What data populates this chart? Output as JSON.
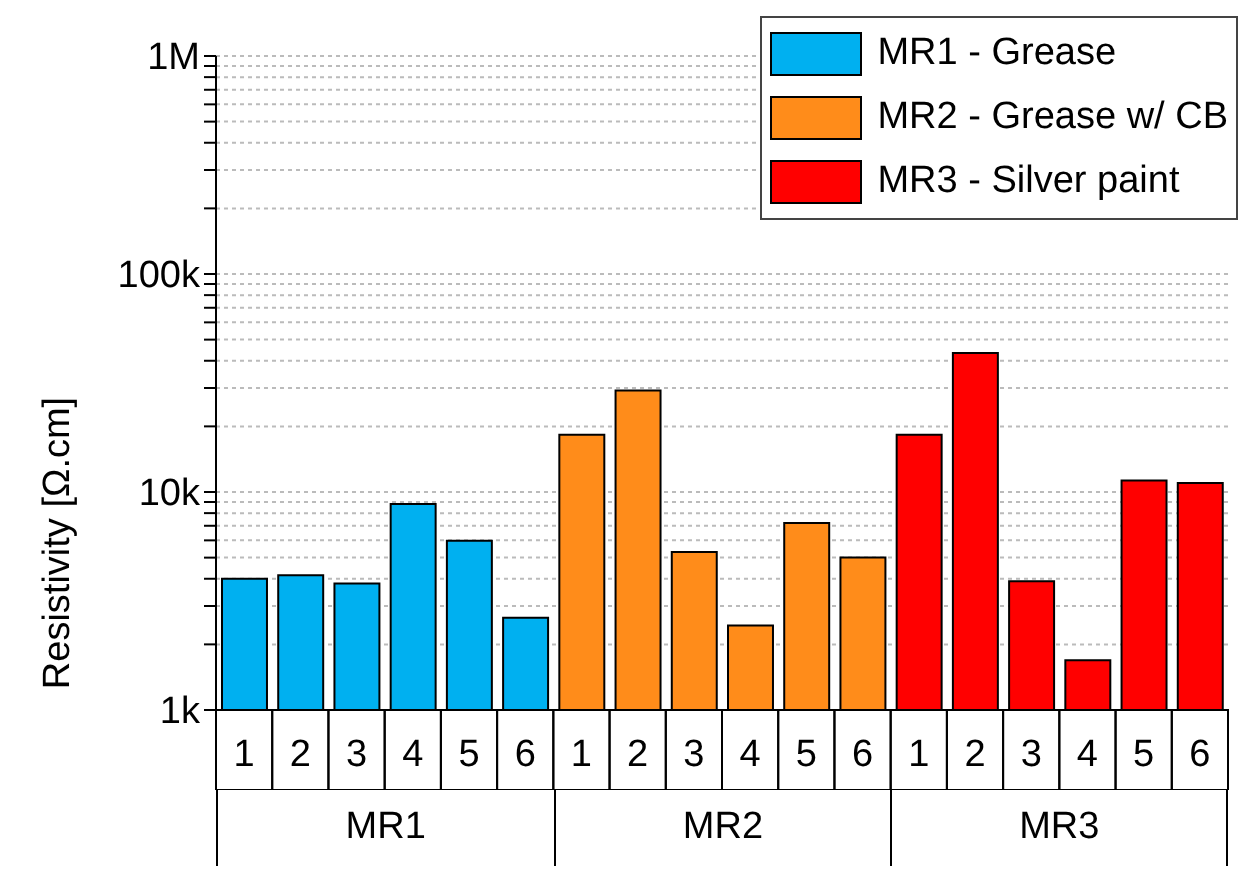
{
  "chart_data": {
    "type": "bar",
    "ylabel": "Resistivity [Ω.cm]",
    "categories": [
      "1",
      "2",
      "3",
      "4",
      "5",
      "6",
      "1",
      "2",
      "3",
      "4",
      "5",
      "6",
      "1",
      "2",
      "3",
      "4",
      "5",
      "6"
    ],
    "series": [
      {
        "name": "MR1 - Grease",
        "color": "#00b0f0",
        "values": [
          4000,
          4150,
          3800,
          8800,
          5970,
          2650,
          null,
          null,
          null,
          null,
          null,
          null,
          null,
          null,
          null,
          null,
          null,
          null
        ]
      },
      {
        "name": "MR2 - Grease w/ CB",
        "color": "#ff8c1a",
        "values": [
          null,
          null,
          null,
          null,
          null,
          null,
          18300,
          29200,
          5300,
          2440,
          7200,
          5000,
          null,
          null,
          null,
          null,
          null,
          null
        ]
      },
      {
        "name": "MR3 - Silver paint",
        "color": "#ff0000",
        "values": [
          null,
          null,
          null,
          null,
          null,
          null,
          null,
          null,
          null,
          null,
          null,
          null,
          18300,
          43400,
          3900,
          1690,
          11300,
          11000
        ]
      }
    ],
    "log": true,
    "ylim": [
      1000,
      1000000
    ],
    "yticks": [
      {
        "value": 1000,
        "label": "1k"
      },
      {
        "value": 2000,
        "label": null
      },
      {
        "value": 3000,
        "label": null
      },
      {
        "value": 4000,
        "label": null
      },
      {
        "value": 5000,
        "label": null
      },
      {
        "value": 6000,
        "label": null
      },
      {
        "value": 7000,
        "label": null
      },
      {
        "value": 8000,
        "label": null
      },
      {
        "value": 9000,
        "label": null
      },
      {
        "value": 10000,
        "label": "10k"
      },
      {
        "value": 20000,
        "label": null
      },
      {
        "value": 30000,
        "label": null
      },
      {
        "value": 40000,
        "label": null
      },
      {
        "value": 50000,
        "label": null
      },
      {
        "value": 60000,
        "label": null
      },
      {
        "value": 70000,
        "label": null
      },
      {
        "value": 80000,
        "label": null
      },
      {
        "value": 90000,
        "label": null
      },
      {
        "value": 100000,
        "label": "100k"
      },
      {
        "value": 200000,
        "label": null
      },
      {
        "value": 300000,
        "label": null
      },
      {
        "value": 400000,
        "label": null
      },
      {
        "value": 500000,
        "label": null
      },
      {
        "value": 600000,
        "label": null
      },
      {
        "value": 700000,
        "label": null
      },
      {
        "value": 800000,
        "label": null
      },
      {
        "value": 900000,
        "label": null
      },
      {
        "value": 1000000,
        "label": "1M"
      }
    ],
    "grid": "y",
    "legend": "top right",
    "annotations": [
      "MR1",
      "MR2",
      "MR3"
    ]
  }
}
